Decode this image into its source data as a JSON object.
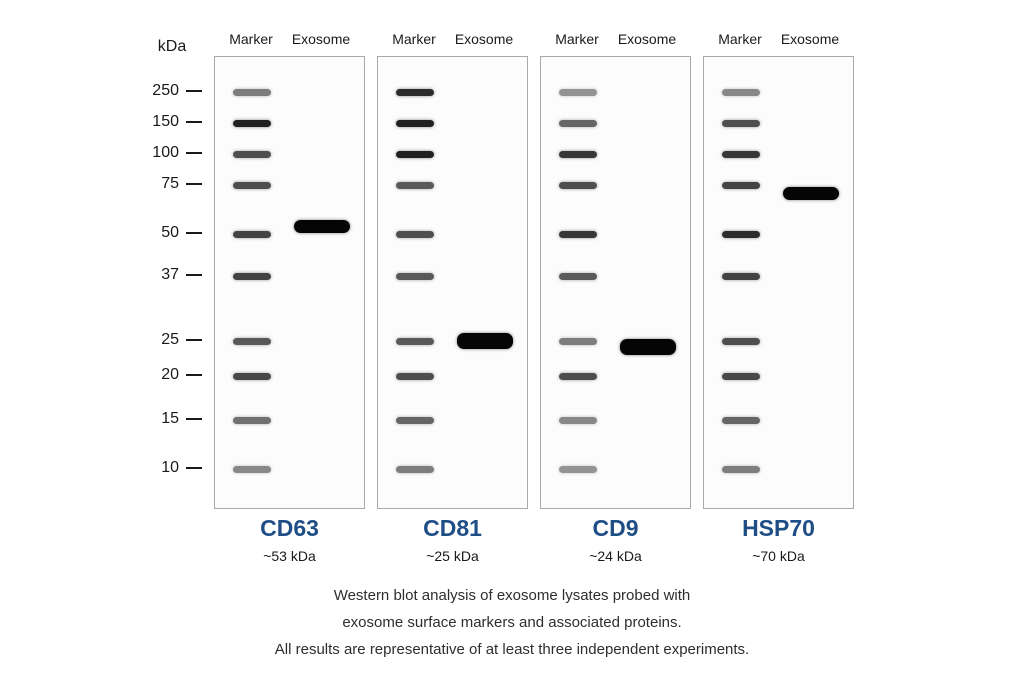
{
  "figure": {
    "y_axis_label": "kDa",
    "marker_sizes": [
      "250",
      "150",
      "100",
      "75",
      "50",
      "37",
      "25",
      "20",
      "15",
      "10"
    ],
    "lane_labels": {
      "marker": "Marker",
      "sample": "Exosome"
    },
    "blots": [
      {
        "name": "CD63",
        "size_label": "~53 kDa",
        "band_kda": 53
      },
      {
        "name": "CD81",
        "size_label": "~25 kDa",
        "band_kda": 25
      },
      {
        "name": "CD9",
        "size_label": "~24 kDa",
        "band_kda": 24
      },
      {
        "name": "HSP70",
        "size_label": "~70 kDa",
        "band_kda": 70
      }
    ],
    "caption": [
      "Western blot analysis of exosome lysates probed with",
      "exosome surface markers and associated proteins.",
      "All results are representative of at least three independent experiments."
    ],
    "colors": {
      "title_blue": "#1f4e86",
      "band": "#050505",
      "marker_band": "#3a3a3a",
      "border": "#a9a9a9"
    }
  }
}
